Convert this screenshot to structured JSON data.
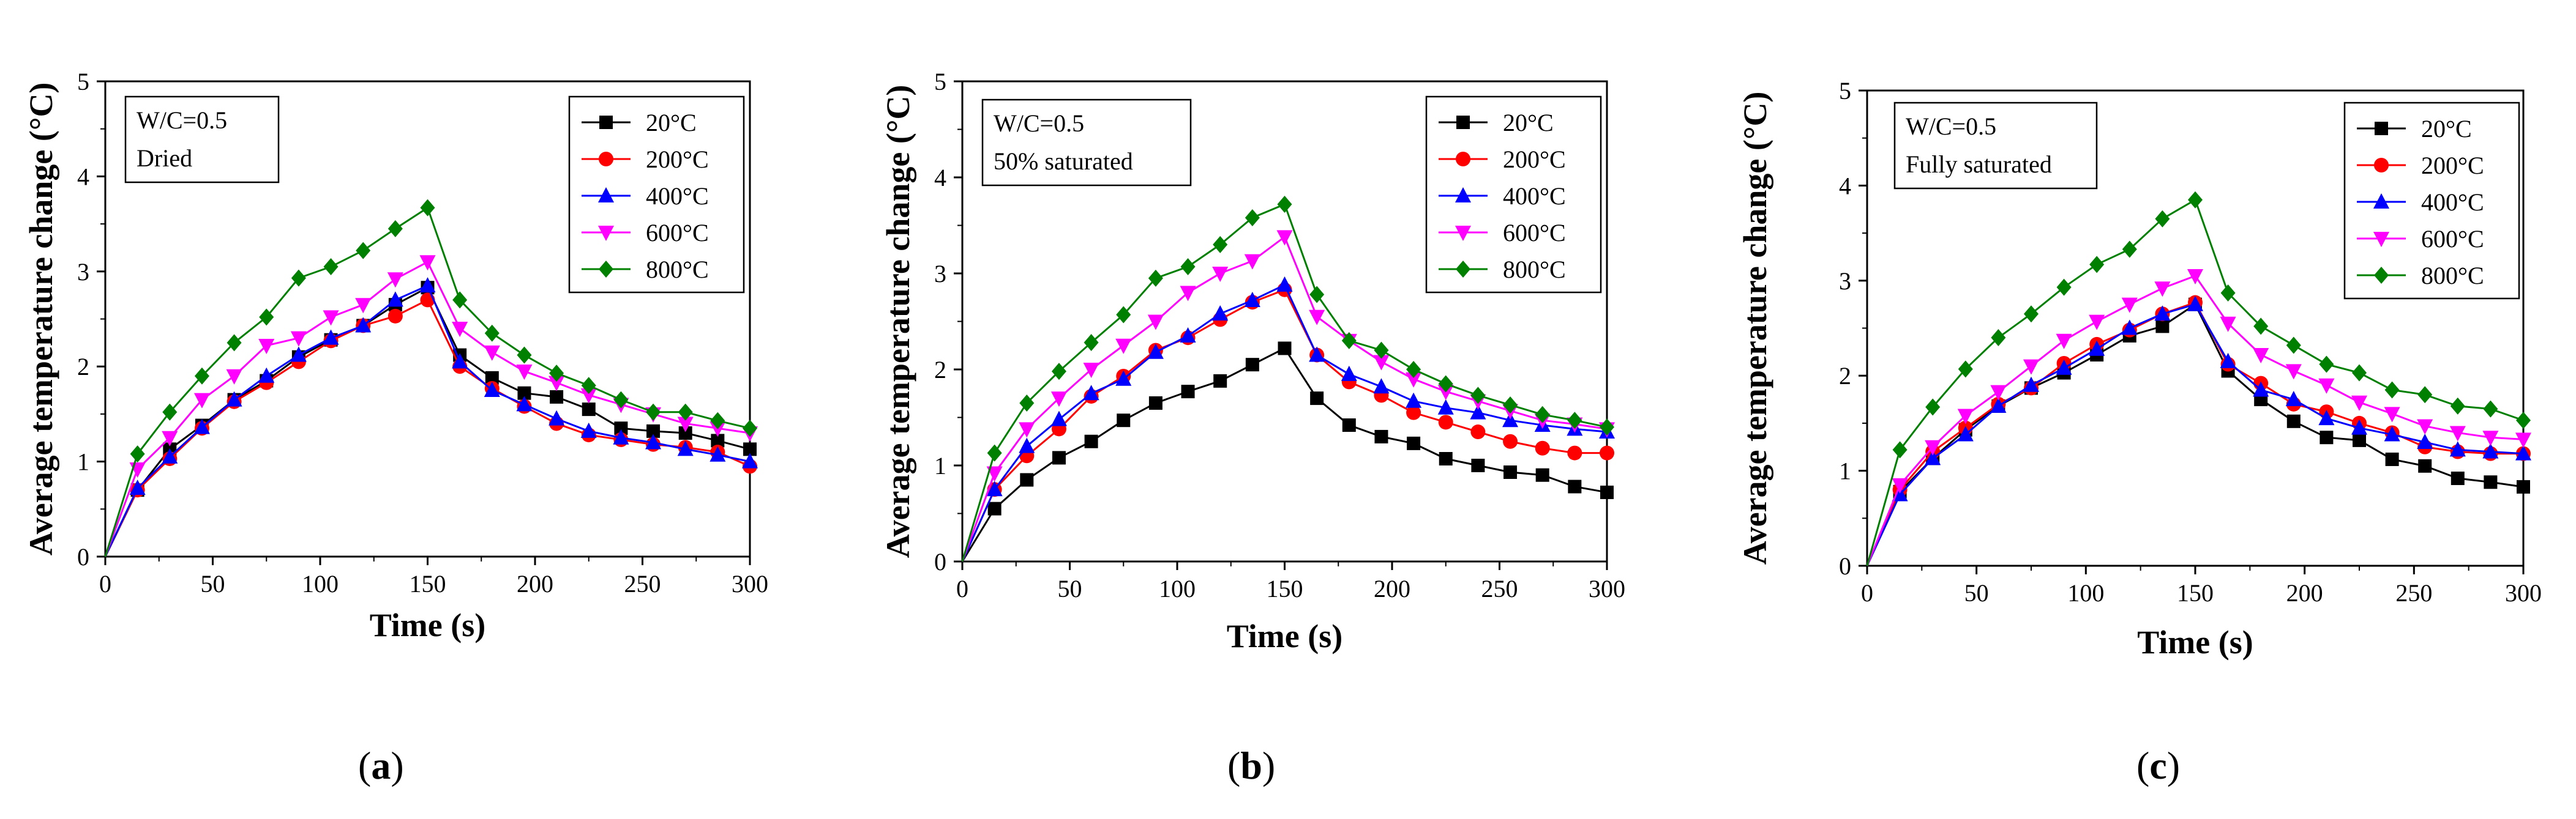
{
  "chart_data": [
    {
      "type": "line",
      "panel_label": "a",
      "xlabel": "Time (s)",
      "ylabel": "Average temperature change (°C)",
      "xlim": [
        0,
        300
      ],
      "ylim": [
        0,
        5
      ],
      "xticks": [
        0,
        50,
        100,
        150,
        200,
        250,
        300
      ],
      "yticks": [
        0,
        1,
        2,
        3,
        4,
        5
      ],
      "annotation": [
        "W/C=0.5",
        "Dried"
      ],
      "legend_position": "top-right",
      "x": [
        0,
        15,
        30,
        45,
        60,
        75,
        90,
        105,
        120,
        135,
        150,
        165,
        180,
        195,
        210,
        225,
        240,
        255,
        270,
        285,
        300
      ],
      "series": [
        {
          "name": "20°C",
          "color": "#000000",
          "marker": "square",
          "values": [
            0,
            0.7,
            1.13,
            1.38,
            1.65,
            1.85,
            2.1,
            2.28,
            2.43,
            2.65,
            2.83,
            2.12,
            1.88,
            1.72,
            1.68,
            1.55,
            1.35,
            1.32,
            1.3,
            1.22,
            1.13
          ]
        },
        {
          "name": "200°C",
          "color": "#ff0000",
          "marker": "circle",
          "values": [
            0,
            0.7,
            1.03,
            1.35,
            1.63,
            1.83,
            2.05,
            2.27,
            2.43,
            2.53,
            2.7,
            2.0,
            1.77,
            1.58,
            1.4,
            1.28,
            1.23,
            1.18,
            1.15,
            1.1,
            0.95
          ]
        },
        {
          "name": "400°C",
          "color": "#0000ff",
          "marker": "triangle-up",
          "values": [
            0,
            0.72,
            1.05,
            1.36,
            1.65,
            1.9,
            2.12,
            2.3,
            2.43,
            2.7,
            2.85,
            2.05,
            1.75,
            1.6,
            1.45,
            1.32,
            1.25,
            1.2,
            1.13,
            1.07,
            1.0
          ]
        },
        {
          "name": "600°C",
          "color": "#ff00ff",
          "marker": "triangle-down",
          "values": [
            0,
            0.92,
            1.25,
            1.65,
            1.9,
            2.22,
            2.3,
            2.52,
            2.65,
            2.92,
            3.1,
            2.4,
            2.15,
            1.95,
            1.83,
            1.7,
            1.6,
            1.5,
            1.4,
            1.35,
            1.3
          ]
        },
        {
          "name": "800°C",
          "color": "#008000",
          "marker": "diamond",
          "values": [
            0,
            1.08,
            1.52,
            1.9,
            2.25,
            2.52,
            2.93,
            3.05,
            3.22,
            3.45,
            3.67,
            2.7,
            2.35,
            2.12,
            1.93,
            1.8,
            1.65,
            1.52,
            1.52,
            1.43,
            1.35
          ]
        }
      ]
    },
    {
      "type": "line",
      "panel_label": "b",
      "xlabel": "Time (s)",
      "ylabel": "Average temperature change (°C)",
      "xlim": [
        0,
        300
      ],
      "ylim": [
        0,
        5
      ],
      "xticks": [
        0,
        50,
        100,
        150,
        200,
        250,
        300
      ],
      "yticks": [
        0,
        1,
        2,
        3,
        4,
        5
      ],
      "annotation": [
        "W/C=0.5",
        "50% saturated"
      ],
      "legend_position": "top-right",
      "x": [
        0,
        15,
        30,
        45,
        60,
        75,
        90,
        105,
        120,
        135,
        150,
        165,
        180,
        195,
        210,
        225,
        240,
        255,
        270,
        285,
        300
      ],
      "series": [
        {
          "name": "20°C",
          "color": "#000000",
          "marker": "square",
          "values": [
            0,
            0.55,
            0.85,
            1.08,
            1.25,
            1.47,
            1.65,
            1.77,
            1.88,
            2.05,
            2.22,
            1.7,
            1.42,
            1.3,
            1.23,
            1.07,
            1.0,
            0.93,
            0.9,
            0.78,
            0.72
          ]
        },
        {
          "name": "200°C",
          "color": "#ff0000",
          "marker": "circle",
          "values": [
            0,
            0.75,
            1.1,
            1.38,
            1.72,
            1.93,
            2.2,
            2.33,
            2.52,
            2.7,
            2.83,
            2.15,
            1.87,
            1.73,
            1.55,
            1.45,
            1.35,
            1.25,
            1.18,
            1.13,
            1.13
          ]
        },
        {
          "name": "400°C",
          "color": "#0000ff",
          "marker": "triangle-up",
          "values": [
            0,
            0.75,
            1.2,
            1.48,
            1.75,
            1.9,
            2.18,
            2.35,
            2.58,
            2.72,
            2.88,
            2.15,
            1.95,
            1.82,
            1.67,
            1.6,
            1.55,
            1.47,
            1.42,
            1.38,
            1.35
          ]
        },
        {
          "name": "600°C",
          "color": "#ff00ff",
          "marker": "triangle-down",
          "values": [
            0,
            0.92,
            1.38,
            1.7,
            2.0,
            2.25,
            2.5,
            2.8,
            3.0,
            3.13,
            3.38,
            2.55,
            2.3,
            2.08,
            1.9,
            1.77,
            1.67,
            1.57,
            1.47,
            1.43,
            1.38
          ]
        },
        {
          "name": "800°C",
          "color": "#008000",
          "marker": "diamond",
          "values": [
            0,
            1.13,
            1.65,
            1.98,
            2.28,
            2.57,
            2.95,
            3.07,
            3.3,
            3.58,
            3.72,
            2.78,
            2.3,
            2.2,
            2.0,
            1.85,
            1.73,
            1.63,
            1.53,
            1.47,
            1.4
          ]
        }
      ]
    },
    {
      "type": "line",
      "panel_label": "c",
      "xlabel": "Time (s)",
      "ylabel": "Average temperature change (°C)",
      "xlim": [
        0,
        300
      ],
      "ylim": [
        0,
        5
      ],
      "xticks": [
        0,
        50,
        100,
        150,
        200,
        250,
        300
      ],
      "yticks": [
        0,
        1,
        2,
        3,
        4,
        5
      ],
      "annotation": [
        "W/C=0.5",
        "Fully saturated"
      ],
      "legend_position": "top-right",
      "x": [
        0,
        15,
        30,
        45,
        60,
        75,
        90,
        105,
        120,
        135,
        150,
        165,
        180,
        195,
        210,
        225,
        240,
        255,
        270,
        285,
        300
      ],
      "series": [
        {
          "name": "20°C",
          "color": "#000000",
          "marker": "square",
          "values": [
            0,
            0.78,
            1.13,
            1.43,
            1.68,
            1.87,
            2.03,
            2.22,
            2.42,
            2.52,
            2.75,
            2.05,
            1.75,
            1.52,
            1.35,
            1.32,
            1.12,
            1.05,
            0.92,
            0.88,
            0.83
          ]
        },
        {
          "name": "200°C",
          "color": "#ff0000",
          "marker": "circle",
          "values": [
            0,
            0.8,
            1.2,
            1.45,
            1.7,
            1.87,
            2.13,
            2.33,
            2.48,
            2.65,
            2.77,
            2.12,
            1.92,
            1.7,
            1.62,
            1.5,
            1.4,
            1.25,
            1.2,
            1.18,
            1.18
          ]
        },
        {
          "name": "400°C",
          "color": "#0000ff",
          "marker": "triangle-up",
          "values": [
            0,
            0.75,
            1.13,
            1.38,
            1.68,
            1.9,
            2.08,
            2.28,
            2.5,
            2.65,
            2.75,
            2.15,
            1.85,
            1.75,
            1.55,
            1.45,
            1.38,
            1.3,
            1.22,
            1.2,
            1.18
          ]
        },
        {
          "name": "600°C",
          "color": "#ff00ff",
          "marker": "triangle-down",
          "values": [
            0,
            0.85,
            1.25,
            1.58,
            1.83,
            2.1,
            2.37,
            2.57,
            2.75,
            2.92,
            3.05,
            2.55,
            2.22,
            2.05,
            1.9,
            1.72,
            1.6,
            1.47,
            1.4,
            1.35,
            1.33
          ]
        },
        {
          "name": "800°C",
          "color": "#008000",
          "marker": "diamond",
          "values": [
            0,
            1.22,
            1.67,
            2.07,
            2.4,
            2.65,
            2.93,
            3.17,
            3.33,
            3.65,
            3.85,
            2.87,
            2.52,
            2.32,
            2.12,
            2.03,
            1.85,
            1.8,
            1.68,
            1.65,
            1.53
          ]
        }
      ]
    }
  ]
}
